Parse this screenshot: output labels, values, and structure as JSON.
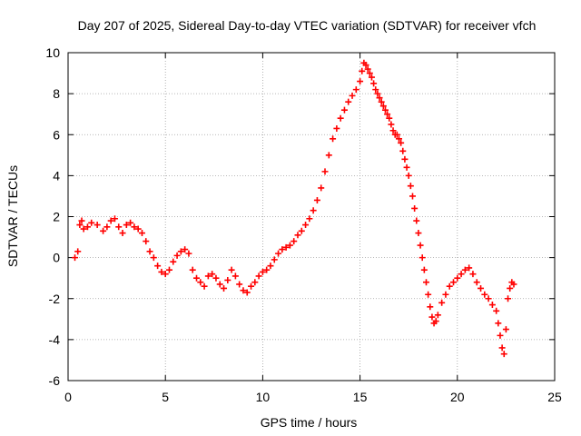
{
  "chart_data": {
    "type": "scatter",
    "title": "Day 207 of 2025, Sidereal Day-to-day VTEC variation (SDTVAR) for receiver vfch",
    "xlabel": "GPS time / hours",
    "ylabel": "SDTVAR / TECUs",
    "xlim": [
      0,
      25
    ],
    "ylim": [
      -6,
      10
    ],
    "xticks": [
      0,
      5,
      10,
      15,
      20,
      25
    ],
    "yticks": [
      -6,
      -4,
      -2,
      0,
      2,
      4,
      6,
      8,
      10
    ],
    "grid": true,
    "marker": "+",
    "colors": {
      "series": "#ff0000",
      "grid": "#a0a0a0",
      "axis": "#000000"
    },
    "series": [
      {
        "name": "SDTVAR",
        "x": [
          0.35,
          0.5,
          0.6,
          0.7,
          0.8,
          1.0,
          1.2,
          1.5,
          1.8,
          2.0,
          2.2,
          2.4,
          2.6,
          2.8,
          3.0,
          3.2,
          3.4,
          3.6,
          3.8,
          4.0,
          4.2,
          4.4,
          4.6,
          4.8,
          5.0,
          5.2,
          5.4,
          5.6,
          5.8,
          6.0,
          6.2,
          6.4,
          6.6,
          6.8,
          7.0,
          7.2,
          7.4,
          7.6,
          7.8,
          8.0,
          8.2,
          8.4,
          8.6,
          8.8,
          9.0,
          9.2,
          9.4,
          9.6,
          9.8,
          10.0,
          10.2,
          10.4,
          10.6,
          10.8,
          11.0,
          11.2,
          11.4,
          11.6,
          11.8,
          12.0,
          12.2,
          12.4,
          12.6,
          12.8,
          13.0,
          13.2,
          13.4,
          13.6,
          13.8,
          14.0,
          14.2,
          14.4,
          14.6,
          14.8,
          15.0,
          15.1,
          15.2,
          15.3,
          15.4,
          15.5,
          15.6,
          15.7,
          15.8,
          15.9,
          16.0,
          16.1,
          16.2,
          16.3,
          16.4,
          16.5,
          16.6,
          16.7,
          16.8,
          16.9,
          17.0,
          17.1,
          17.2,
          17.3,
          17.4,
          17.5,
          17.6,
          17.7,
          17.8,
          17.9,
          18.0,
          18.1,
          18.2,
          18.3,
          18.4,
          18.5,
          18.6,
          18.7,
          18.8,
          18.9,
          19.0,
          19.2,
          19.4,
          19.6,
          19.8,
          20.0,
          20.2,
          20.4,
          20.6,
          20.8,
          21.0,
          21.2,
          21.4,
          21.6,
          21.8,
          22.0,
          22.1,
          22.2,
          22.3,
          22.4,
          22.5,
          22.6,
          22.7,
          22.8,
          22.9
        ],
        "y": [
          0.0,
          0.3,
          1.6,
          1.8,
          1.4,
          1.5,
          1.7,
          1.6,
          1.3,
          1.5,
          1.8,
          1.9,
          1.5,
          1.2,
          1.6,
          1.7,
          1.5,
          1.4,
          1.2,
          0.8,
          0.3,
          0.0,
          -0.4,
          -0.7,
          -0.8,
          -0.6,
          -0.2,
          0.1,
          0.3,
          0.4,
          0.2,
          -0.6,
          -1.0,
          -1.2,
          -1.4,
          -0.9,
          -0.8,
          -1.0,
          -1.3,
          -1.5,
          -1.1,
          -0.6,
          -0.9,
          -1.3,
          -1.6,
          -1.7,
          -1.4,
          -1.2,
          -0.9,
          -0.7,
          -0.6,
          -0.4,
          -0.1,
          0.2,
          0.4,
          0.5,
          0.6,
          0.8,
          1.1,
          1.3,
          1.6,
          1.9,
          2.3,
          2.8,
          3.4,
          4.2,
          5.0,
          5.8,
          6.3,
          6.8,
          7.2,
          7.6,
          7.9,
          8.2,
          8.6,
          9.1,
          9.5,
          9.4,
          9.2,
          9.0,
          8.8,
          8.5,
          8.2,
          8.0,
          7.8,
          7.6,
          7.4,
          7.2,
          7.0,
          6.8,
          6.5,
          6.2,
          6.0,
          6.0,
          5.8,
          5.6,
          5.2,
          4.8,
          4.4,
          4.0,
          3.5,
          3.0,
          2.4,
          1.8,
          1.2,
          0.6,
          0.0,
          -0.6,
          -1.2,
          -1.8,
          -2.4,
          -2.9,
          -3.2,
          -3.1,
          -2.8,
          -2.2,
          -1.8,
          -1.4,
          -1.2,
          -1.0,
          -0.8,
          -0.6,
          -0.5,
          -0.8,
          -1.2,
          -1.5,
          -1.8,
          -2.0,
          -2.3,
          -2.6,
          -3.2,
          -3.8,
          -4.4,
          -4.7,
          -3.5,
          -2.0,
          -1.5,
          -1.2,
          -1.3
        ]
      }
    ]
  }
}
